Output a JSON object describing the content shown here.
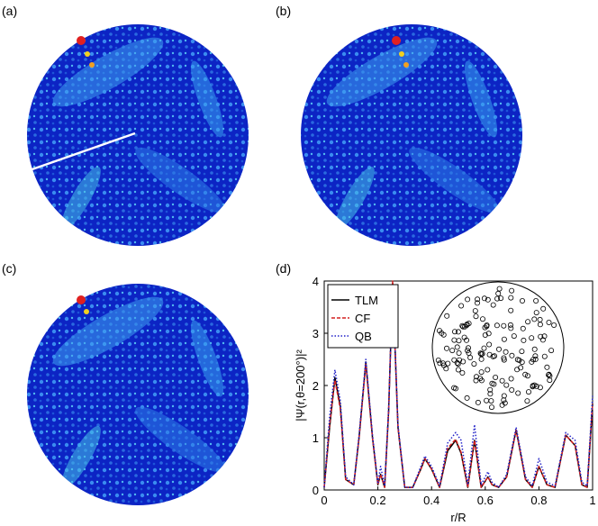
{
  "panels": [
    {
      "label": "(a)"
    },
    {
      "label": "(b)"
    },
    {
      "label": "(c)"
    },
    {
      "label": "(d)"
    }
  ],
  "colors": {
    "disk_background": "#0a1fb8",
    "tlm": "#000000",
    "cf": "#d42020",
    "qb": "#2020c8",
    "cut_line": "#ffffff"
  },
  "chart_data": {
    "type": "line",
    "xlabel": "r/R",
    "ylabel": "|Ψ(r,θ=200°)|²",
    "xlim": [
      0,
      1
    ],
    "ylim": [
      0,
      4
    ],
    "xticks": [
      "0",
      "0.2",
      "0.4",
      "0.6",
      "0.8",
      "1"
    ],
    "yticks": [
      "0",
      "1",
      "2",
      "3",
      "4"
    ],
    "legend_position": "top-left",
    "grid": false,
    "series": [
      {
        "name": "TLM",
        "style": "solid",
        "x": [
          0,
          0.02,
          0.04,
          0.06,
          0.08,
          0.11,
          0.13,
          0.155,
          0.18,
          0.2,
          0.21,
          0.225,
          0.24,
          0.255,
          0.275,
          0.3,
          0.33,
          0.36,
          0.375,
          0.4,
          0.43,
          0.46,
          0.49,
          0.51,
          0.535,
          0.56,
          0.585,
          0.61,
          0.625,
          0.65,
          0.68,
          0.715,
          0.75,
          0.775,
          0.8,
          0.83,
          0.86,
          0.9,
          0.935,
          0.96,
          0.98,
          1.0
        ],
        "y": [
          0.05,
          1.2,
          2.15,
          1.6,
          0.2,
          0.1,
          1.0,
          2.45,
          1.0,
          0.1,
          0.3,
          0.05,
          1.5,
          3.95,
          1.2,
          0.05,
          0.05,
          0.4,
          0.6,
          0.4,
          0.05,
          0.75,
          0.95,
          0.7,
          0.05,
          0.95,
          0.05,
          0.25,
          0.1,
          0.05,
          0.25,
          1.15,
          0.2,
          0.05,
          0.45,
          0.1,
          0.05,
          1.05,
          0.85,
          0.1,
          0.05,
          1.65
        ]
      },
      {
        "name": "CF",
        "style": "dashed",
        "x": [
          0,
          0.02,
          0.04,
          0.06,
          0.08,
          0.11,
          0.13,
          0.155,
          0.18,
          0.2,
          0.21,
          0.225,
          0.24,
          0.255,
          0.275,
          0.3,
          0.33,
          0.36,
          0.375,
          0.4,
          0.43,
          0.46,
          0.49,
          0.51,
          0.535,
          0.56,
          0.585,
          0.61,
          0.625,
          0.65,
          0.68,
          0.715,
          0.75,
          0.775,
          0.8,
          0.83,
          0.86,
          0.9,
          0.935,
          0.96,
          0.98,
          1.0
        ],
        "y": [
          0.05,
          1.25,
          2.1,
          1.55,
          0.2,
          0.1,
          1.0,
          2.4,
          1.0,
          0.1,
          0.3,
          0.05,
          1.5,
          4.0,
          1.2,
          0.05,
          0.05,
          0.4,
          0.6,
          0.4,
          0.05,
          0.8,
          0.97,
          0.72,
          0.05,
          0.95,
          0.05,
          0.25,
          0.1,
          0.05,
          0.25,
          1.15,
          0.2,
          0.05,
          0.45,
          0.1,
          0.05,
          1.05,
          0.85,
          0.1,
          0.05,
          1.65
        ]
      },
      {
        "name": "QB",
        "style": "dotted",
        "x": [
          0,
          0.02,
          0.04,
          0.06,
          0.08,
          0.11,
          0.13,
          0.155,
          0.18,
          0.2,
          0.21,
          0.225,
          0.24,
          0.255,
          0.275,
          0.3,
          0.33,
          0.36,
          0.375,
          0.4,
          0.43,
          0.46,
          0.49,
          0.51,
          0.535,
          0.56,
          0.585,
          0.61,
          0.625,
          0.65,
          0.68,
          0.715,
          0.75,
          0.775,
          0.8,
          0.83,
          0.86,
          0.9,
          0.935,
          0.96,
          0.98,
          1.0
        ],
        "y": [
          0.05,
          1.4,
          2.3,
          1.7,
          0.25,
          0.1,
          1.05,
          2.5,
          1.05,
          0.12,
          0.45,
          0.08,
          1.55,
          3.95,
          1.25,
          0.05,
          0.05,
          0.45,
          0.65,
          0.45,
          0.08,
          0.9,
          1.1,
          0.95,
          0.1,
          1.25,
          0.1,
          0.35,
          0.15,
          0.05,
          0.3,
          1.2,
          0.25,
          0.08,
          0.6,
          0.15,
          0.08,
          1.1,
          0.95,
          0.15,
          0.08,
          1.8
        ]
      }
    ]
  }
}
